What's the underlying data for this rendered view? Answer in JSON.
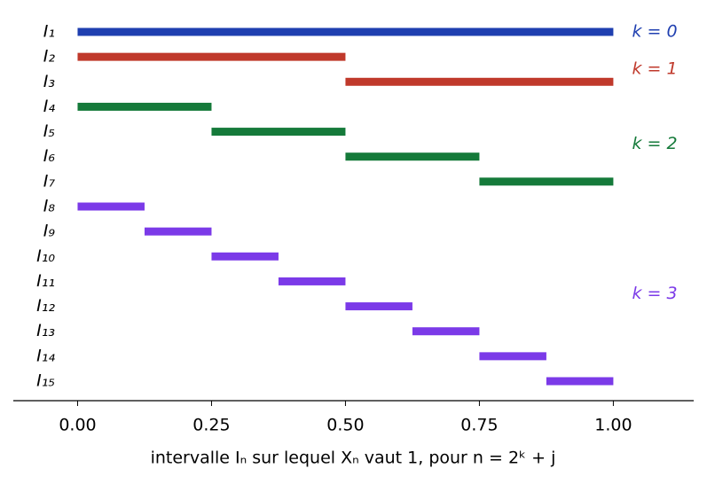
{
  "chart_data": {
    "type": "interval",
    "xlabel": "intervalle Iₙ sur lequel Xₙ vaut 1, pour n = 2ᵏ + j",
    "xlim": [
      -0.12,
      1.15
    ],
    "xticks": [
      {
        "value": 0,
        "label": "0.00"
      },
      {
        "value": 0.25,
        "label": "0.25"
      },
      {
        "value": 0.5,
        "label": "0.50"
      },
      {
        "value": 0.75,
        "label": "0.75"
      },
      {
        "value": 1,
        "label": "1.00"
      }
    ],
    "series": [
      {
        "name": "k = 0",
        "color": "#1f3fb0",
        "categories": [
          "I₁"
        ],
        "starts": [
          0
        ],
        "ends": [
          1
        ]
      },
      {
        "name": "k = 1",
        "color": "#c0392b",
        "categories": [
          "I₂",
          "I₃"
        ],
        "starts": [
          0,
          0.5
        ],
        "ends": [
          0.5,
          1
        ]
      },
      {
        "name": "k = 2",
        "color": "#157a3a",
        "categories": [
          "I₄",
          "I₅",
          "I₆",
          "I₇"
        ],
        "starts": [
          0,
          0.25,
          0.5,
          0.75
        ],
        "ends": [
          0.25,
          0.5,
          0.75,
          1
        ]
      },
      {
        "name": "k = 3",
        "color": "#7b3ae8",
        "categories": [
          "I₈",
          "I₉",
          "I₁₀",
          "I₁₁",
          "I₁₂",
          "I₁₃",
          "I₁₄",
          "I₁₅"
        ],
        "starts": [
          0,
          0.125,
          0.25,
          0.375,
          0.5,
          0.625,
          0.75,
          0.875
        ],
        "ends": [
          0.125,
          0.25,
          0.375,
          0.5,
          0.625,
          0.75,
          0.875,
          1
        ]
      }
    ]
  }
}
